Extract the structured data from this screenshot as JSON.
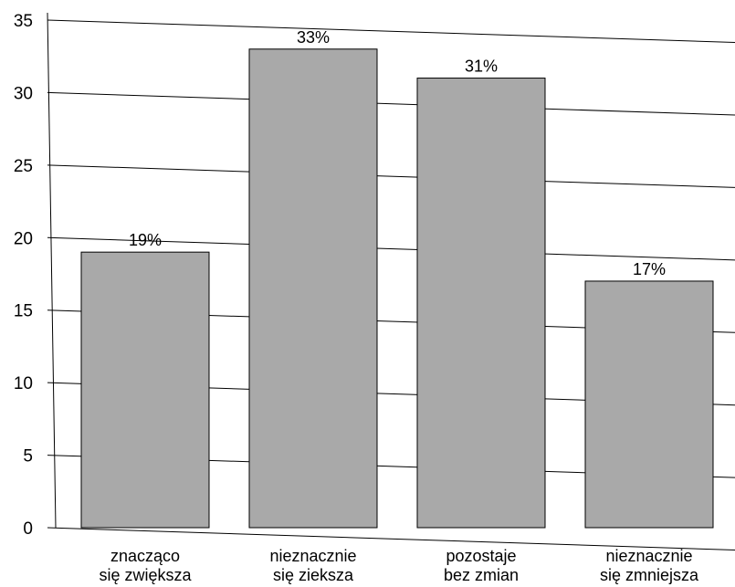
{
  "chart_data": {
    "type": "bar",
    "categories": [
      [
        "znacząco",
        "się zwiększa"
      ],
      [
        "nieznacznie",
        "się zieksza"
      ],
      [
        "pozostaje",
        "bez zmian"
      ],
      [
        "nieznacznie",
        "się zmniejsza"
      ]
    ],
    "values": [
      19,
      33,
      31,
      17
    ],
    "data_labels": [
      "19%",
      "33%",
      "31%",
      "17%"
    ],
    "yticks": [
      "0",
      "5",
      "10",
      "15",
      "20",
      "25",
      "30",
      "35"
    ],
    "ylim": [
      0,
      35
    ],
    "grid": true,
    "colors": {
      "bar_fill": "#a9a9a9",
      "bar_stroke": "#000000",
      "grid": "#000000"
    }
  }
}
